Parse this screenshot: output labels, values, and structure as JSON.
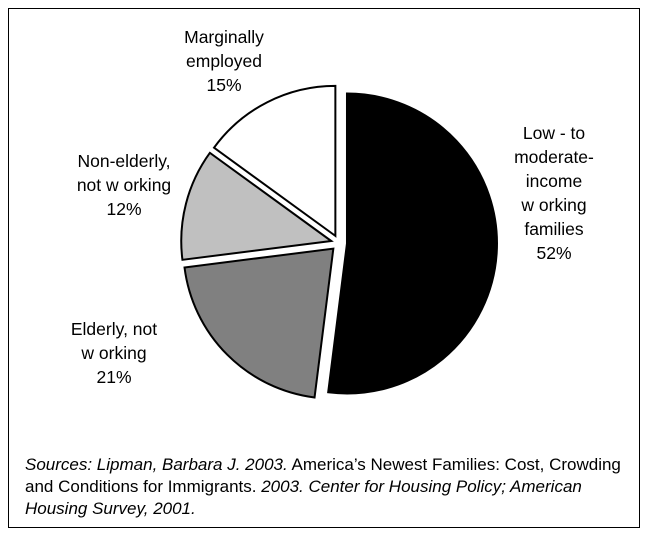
{
  "chart_data": {
    "type": "pie",
    "slices": [
      {
        "label_lines": [
          "Low - to",
          "moderate-",
          "income",
          "w orking",
          "families"
        ],
        "pct": "52%",
        "value": 52,
        "color": "#000000"
      },
      {
        "label_lines": [
          "Elderly, not",
          "w orking"
        ],
        "pct": "21%",
        "value": 21,
        "color": "#808080"
      },
      {
        "label_lines": [
          "Non-elderly,",
          "not w orking"
        ],
        "pct": "12%",
        "value": 12,
        "color": "#c0c0c0"
      },
      {
        "label_lines": [
          "Marginally",
          "employed"
        ],
        "pct": "15%",
        "value": 15,
        "color": "#ffffff"
      }
    ],
    "start_angle_deg": 0,
    "direction": "clockwise",
    "exploded": true,
    "legend": "none"
  },
  "source": {
    "part1": "Sources: Lipman, Barbara J. 2003.",
    "part2": " America’s Newest Families: Cost, Crowding and Conditions for Immigrants. ",
    "part3": "2003. Center for Housing Policy; American Housing Survey, 2001."
  }
}
